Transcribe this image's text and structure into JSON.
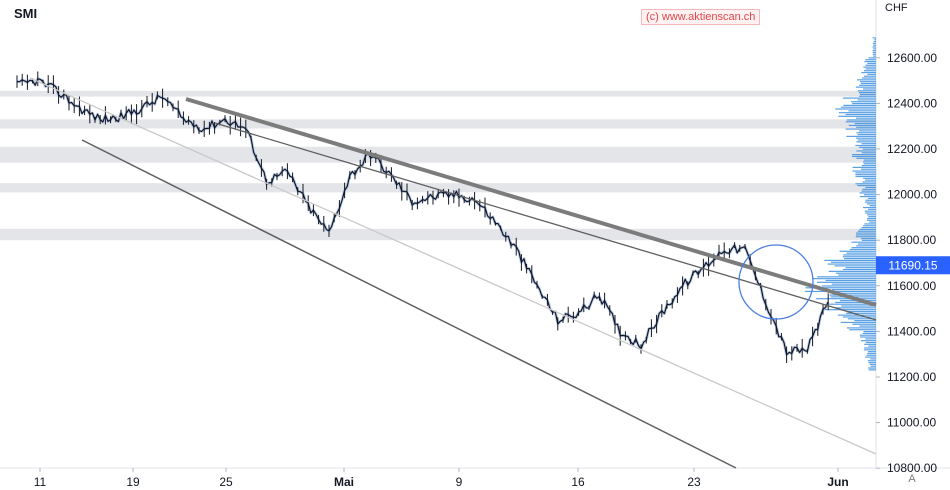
{
  "symbol": "SMI",
  "watermark": "(c) www.aktienscan.ch",
  "currency": "CHF",
  "scale_button": "A",
  "colors": {
    "candle": "#131722",
    "shadow": "#9fb8e6",
    "volume_profile": "#3d8fdf",
    "zone": "#e4e5e9",
    "price_tag": "#2962ff",
    "trend_thick": "#7c7c7c",
    "trend_line": "#5f5f5f",
    "trend_light": "#c9c9c9",
    "circle": "#4a7fe0"
  },
  "chart_data": {
    "type": "line",
    "title": "SMI",
    "xlabel": "",
    "ylabel": "CHF",
    "ylim": [
      10800,
      12720
    ],
    "x_ticks": [
      "11",
      "19",
      "25",
      "Mai",
      "9",
      "16",
      "23",
      "Jun"
    ],
    "y_ticks": [
      "12600.00",
      "12400.00",
      "12200.00",
      "12000.00",
      "11800.00",
      "11600.00",
      "11400.00",
      "11200.00",
      "11000.00",
      "10800.00"
    ],
    "last_price": "11690.15",
    "series": [
      {
        "x": [
          "11",
          "",
          "",
          "",
          "",
          "",
          "",
          "19",
          "",
          "",
          "",
          "",
          "25",
          "",
          "",
          "",
          "",
          "Mai",
          "",
          "",
          "",
          "",
          "",
          "",
          "9",
          "",
          "",
          "",
          "",
          "16",
          "",
          "",
          "",
          "",
          "",
          "23",
          "",
          "",
          "",
          ""
        ],
        "values": [
          12480,
          12500,
          12450,
          12380,
          12330,
          12340,
          12380,
          12430,
          12330,
          12290,
          12330,
          12290,
          12060,
          12100,
          11950,
          11830,
          12080,
          12180,
          12080,
          11970,
          11990,
          12000,
          11980,
          11880,
          11760,
          11600,
          11450,
          11480,
          11560,
          11400,
          11340,
          11480,
          11600,
          11680,
          11760,
          11760,
          11530,
          11310,
          11320,
          11530
        ]
      }
    ],
    "resistance_zones": [
      [
        12430,
        12455
      ],
      [
        12290,
        12330
      ],
      [
        12140,
        12210
      ],
      [
        12010,
        12050
      ],
      [
        11800,
        11850
      ]
    ],
    "trendlines": [
      {
        "style": "thick",
        "from": [
          "23 Apr",
          12420
        ],
        "to": [
          "Jun",
          11500
        ]
      },
      {
        "style": "thin",
        "from": [
          "24 Apr",
          12310
        ],
        "to": [
          "Jun",
          11440
        ]
      },
      {
        "style": "thin",
        "from": [
          "14 Apr",
          12240
        ],
        "to": [
          "27 May",
          10800
        ]
      },
      {
        "style": "light",
        "from": [
          "10 Apr",
          12500
        ],
        "to": [
          "Jun",
          10870
        ]
      }
    ],
    "volume_profile": {
      "price_range": [
        11230,
        12690
      ],
      "peak_price": 11600
    },
    "annotation": {
      "type": "circle",
      "center_date": "30 May",
      "center_price": 11580
    }
  }
}
